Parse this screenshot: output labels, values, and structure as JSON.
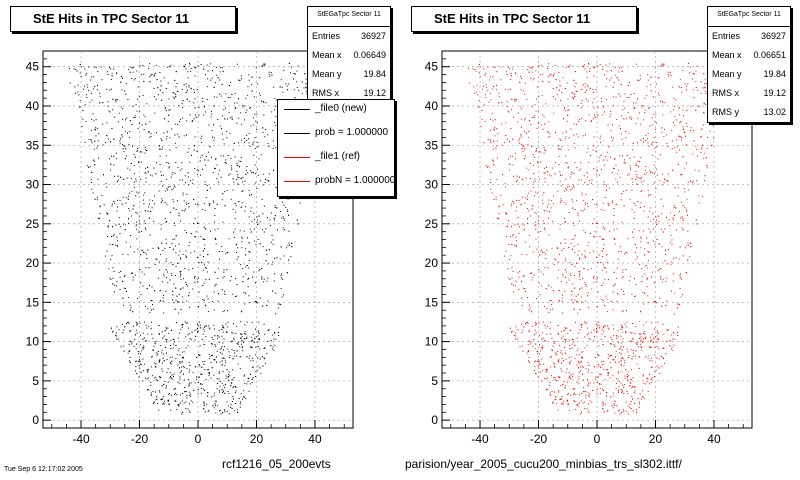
{
  "footer": {
    "left_text": "rcf1216_05_200evts",
    "right_text": "parision/year_2005_cucu200_minbias_trs_sl302.ittf/",
    "stamp": "Tue Sep 6 12:17:02 2005"
  },
  "legend": {
    "entries": [
      {
        "label": "_file0 (new)",
        "color": "#000000"
      },
      {
        "label": "prob = 1.000000",
        "color": "#000000"
      },
      {
        "label": "_file1 (ref)",
        "color": "#ff0000"
      },
      {
        "label": "probN = 1.000000",
        "color": "#ff0000"
      }
    ]
  },
  "chart_data": [
    {
      "type": "scatter",
      "title": "StE Hits in TPC Sector 11",
      "marker_color": "#000000",
      "xlim": [
        -53,
        53
      ],
      "ylim": [
        -1,
        47
      ],
      "xticks": [
        -40,
        -20,
        0,
        20,
        40
      ],
      "yticks": [
        0,
        5,
        10,
        15,
        20,
        25,
        30,
        35,
        40,
        45
      ],
      "grid": true,
      "stats": {
        "name": "StEGaTpc Sector 11",
        "rows": [
          {
            "label": "Entries",
            "value": "36927"
          },
          {
            "label": "Mean x",
            "value": "0.06649"
          },
          {
            "label": "Mean y",
            "value": "19.84"
          },
          {
            "label": "RMS x",
            "value": "19.12"
          }
        ]
      }
    },
    {
      "type": "scatter",
      "title": "StE Hits in TPC Sector 11",
      "marker_color": "#ff0000",
      "xlim": [
        -53,
        53
      ],
      "ylim": [
        -1,
        47
      ],
      "xticks": [
        -40,
        -20,
        0,
        20,
        40
      ],
      "yticks": [
        0,
        5,
        10,
        15,
        20,
        25,
        30,
        35,
        40,
        45
      ],
      "grid": true,
      "stats": {
        "name": "StEGaTpc Sector 11",
        "rows": [
          {
            "label": "Entries",
            "value": "36927"
          },
          {
            "label": "Mean x",
            "value": "0.06651"
          },
          {
            "label": "Mean y",
            "value": "19.84"
          },
          {
            "label": "RMS x",
            "value": "19.12"
          },
          {
            "label": "RMS y",
            "value": "13.02"
          }
        ]
      }
    }
  ]
}
